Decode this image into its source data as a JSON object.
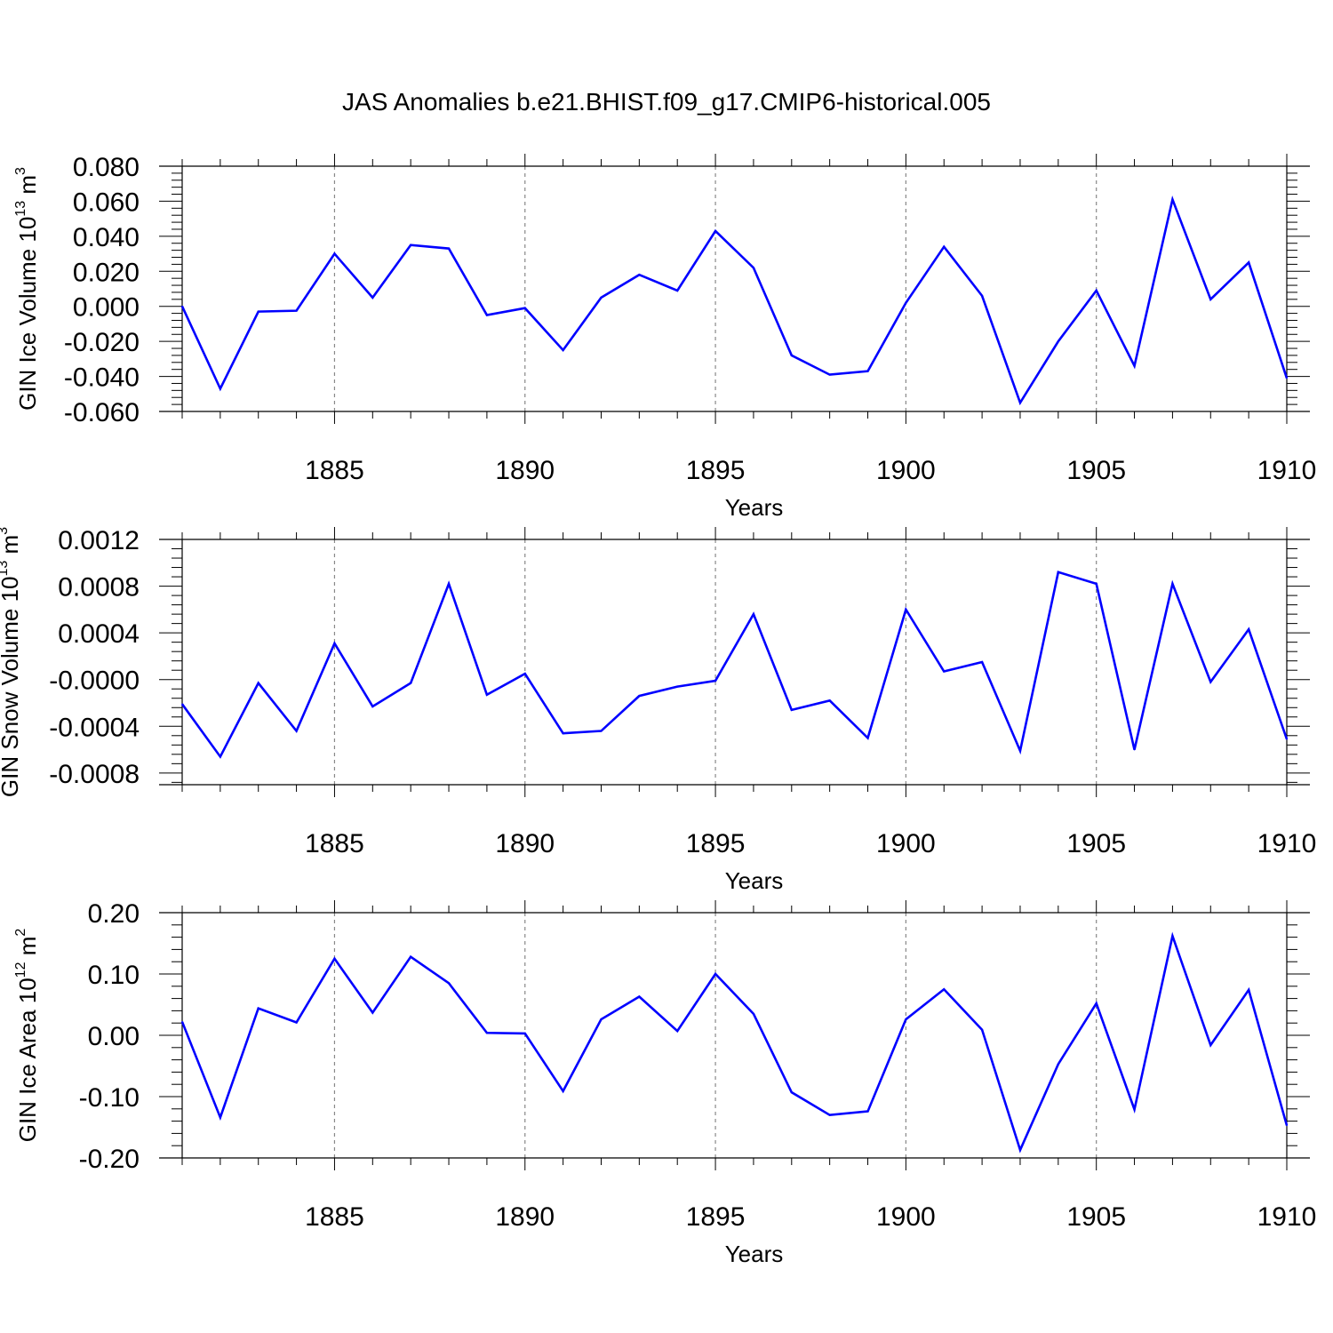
{
  "title": "JAS Anomalies b.e21.BHIST.f09_g17.CMIP6-historical.005",
  "colors": {
    "series": "#0000ff",
    "axis": "#000000",
    "grid": "#888888"
  },
  "chart_data": [
    {
      "type": "line",
      "xlabel": "Years",
      "ylabel_main": "GIN Ice Volume 10",
      "ylabel_exp": "13",
      "ylabel_unit": " m",
      "ylabel_unit_exp": "3",
      "xlim": [
        1881,
        1910
      ],
      "ylim": [
        -0.06,
        0.08
      ],
      "x_ticks": [
        1885,
        1890,
        1895,
        1900,
        1905,
        1910
      ],
      "y_ticks": [
        -0.06,
        -0.04,
        -0.02,
        0.0,
        0.02,
        0.04,
        0.06,
        0.08
      ],
      "y_tick_labels": [
        "-0.060",
        "-0.040",
        "-0.020",
        "0.000",
        "0.020",
        "0.040",
        "0.060",
        "0.080"
      ],
      "grid": "vertical dashed at major x ticks",
      "x": [
        1881,
        1882,
        1883,
        1884,
        1885,
        1886,
        1887,
        1888,
        1889,
        1890,
        1891,
        1892,
        1893,
        1894,
        1895,
        1896,
        1897,
        1898,
        1899,
        1900,
        1901,
        1902,
        1903,
        1904,
        1905,
        1906,
        1907,
        1908,
        1909,
        1910
      ],
      "values": [
        0.0,
        -0.047,
        -0.003,
        -0.0025,
        0.03,
        0.005,
        0.035,
        0.033,
        -0.005,
        -0.001,
        -0.025,
        0.005,
        0.018,
        0.009,
        0.043,
        0.022,
        -0.028,
        -0.039,
        -0.037,
        0.002,
        0.034,
        0.006,
        -0.055,
        -0.02,
        0.009,
        -0.034,
        0.061,
        0.004,
        0.025,
        -0.041
      ]
    },
    {
      "type": "line",
      "xlabel": "Years",
      "ylabel_main": "GIN Snow Volume 10",
      "ylabel_exp": "13",
      "ylabel_unit": " m",
      "ylabel_unit_exp": "3",
      "xlim": [
        1881,
        1910
      ],
      "ylim": [
        -0.0009,
        0.0012
      ],
      "x_ticks": [
        1885,
        1890,
        1895,
        1900,
        1905,
        1910
      ],
      "y_ticks": [
        -0.0008,
        -0.0004,
        0.0,
        0.0004,
        0.0008,
        0.0012
      ],
      "y_tick_labels": [
        "-0.0008",
        "-0.0004",
        "-0.0000",
        "0.0004",
        "0.0008",
        "0.0012"
      ],
      "grid": "vertical dashed at major x ticks",
      "x": [
        1881,
        1882,
        1883,
        1884,
        1885,
        1886,
        1887,
        1888,
        1889,
        1890,
        1891,
        1892,
        1893,
        1894,
        1895,
        1896,
        1897,
        1898,
        1899,
        1900,
        1901,
        1902,
        1903,
        1904,
        1905,
        1906,
        1907,
        1908,
        1909,
        1910
      ],
      "values": [
        -0.00021,
        -0.00066,
        -3e-05,
        -0.00044,
        0.00031,
        -0.00023,
        -3e-05,
        0.00082,
        -0.00013,
        5e-05,
        -0.00046,
        -0.00044,
        -0.00014,
        -6e-05,
        -1e-05,
        0.00056,
        -0.00026,
        -0.00018,
        -0.0005,
        0.0006,
        7e-05,
        0.00015,
        -0.00061,
        0.00092,
        0.00082,
        -0.0006,
        0.00082,
        -2e-05,
        0.00043,
        -0.00051
      ]
    },
    {
      "type": "line",
      "xlabel": "Years",
      "ylabel_main": "GIN Ice Area 10",
      "ylabel_exp": "12",
      "ylabel_unit": " m",
      "ylabel_unit_exp": "2",
      "xlim": [
        1881,
        1910
      ],
      "ylim": [
        -0.2,
        0.2
      ],
      "x_ticks": [
        1885,
        1890,
        1895,
        1900,
        1905,
        1910
      ],
      "y_ticks": [
        -0.2,
        -0.1,
        0.0,
        0.1,
        0.2
      ],
      "y_tick_labels": [
        "-0.20",
        "-0.10",
        "0.00",
        "0.10",
        "0.20"
      ],
      "grid": "vertical dashed at major x ticks",
      "x": [
        1881,
        1882,
        1883,
        1884,
        1885,
        1886,
        1887,
        1888,
        1889,
        1890,
        1891,
        1892,
        1893,
        1894,
        1895,
        1896,
        1897,
        1898,
        1899,
        1900,
        1901,
        1902,
        1903,
        1904,
        1905,
        1906,
        1907,
        1908,
        1909,
        1910
      ],
      "values": [
        0.022,
        -0.134,
        0.044,
        0.021,
        0.125,
        0.037,
        0.128,
        0.085,
        0.004,
        0.003,
        -0.091,
        0.026,
        0.063,
        0.007,
        0.1,
        0.035,
        -0.093,
        -0.13,
        -0.124,
        0.026,
        0.075,
        0.009,
        -0.187,
        -0.047,
        0.052,
        -0.121,
        0.162,
        -0.016,
        0.074,
        -0.147
      ]
    }
  ]
}
